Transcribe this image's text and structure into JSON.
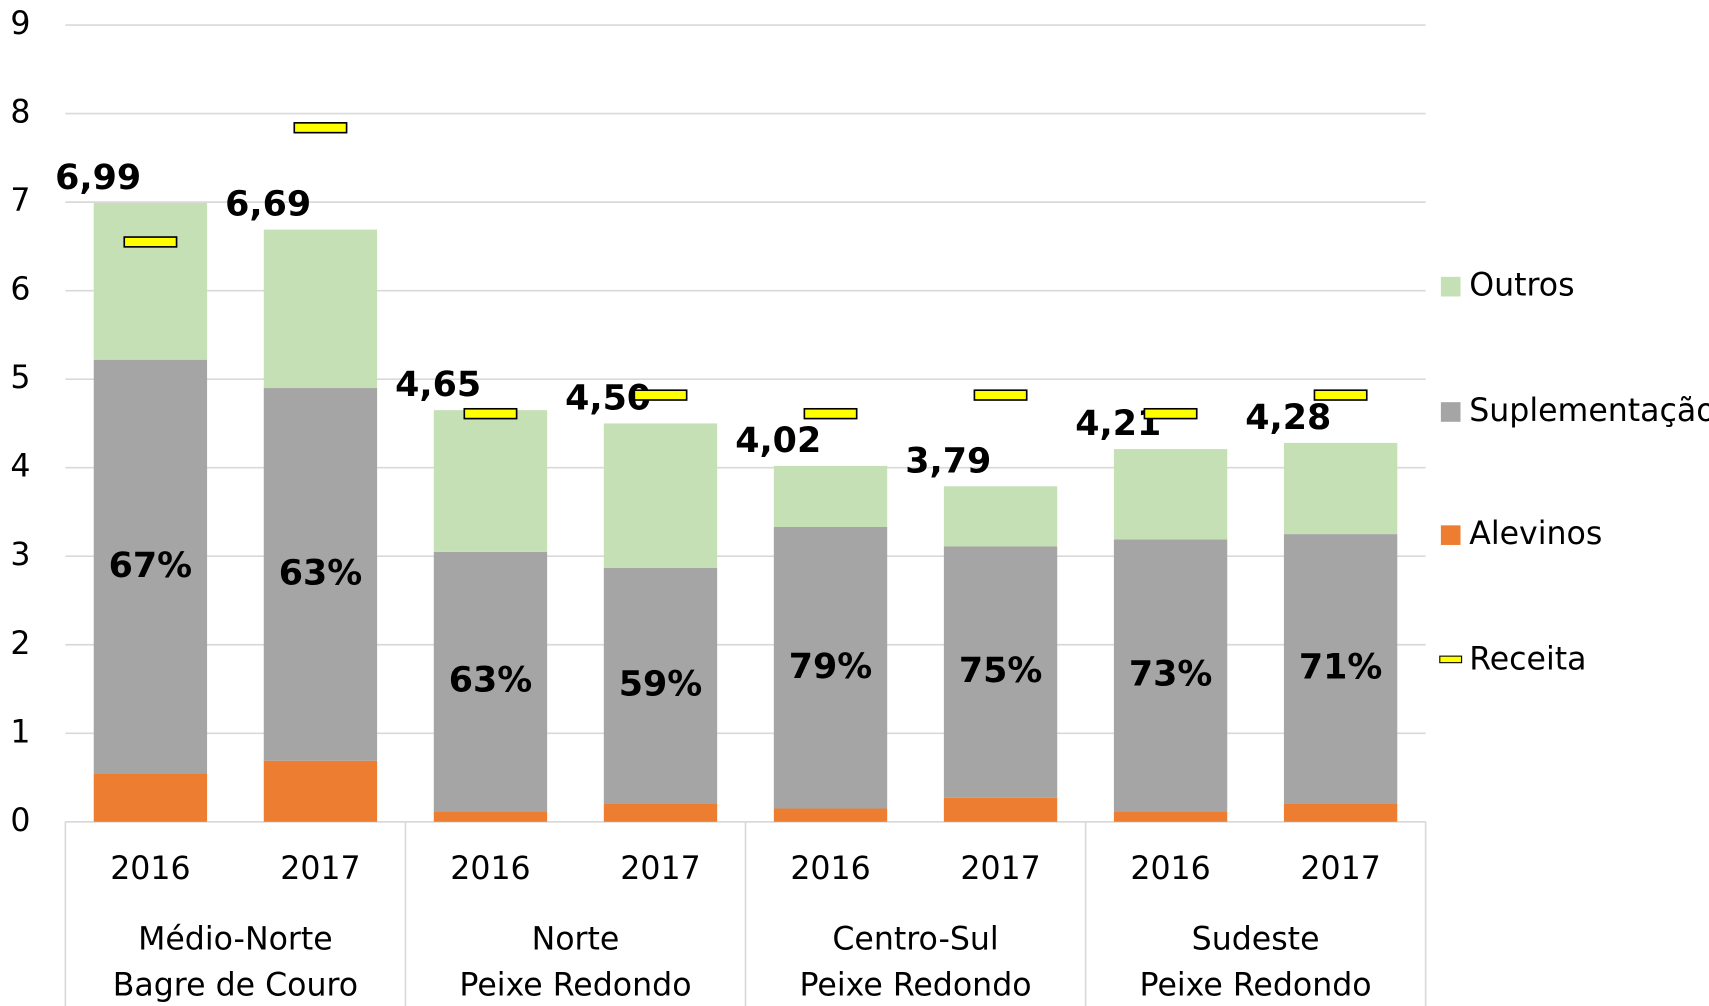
{
  "chart_data": {
    "type": "stacked_bar",
    "categories": [
      "2016",
      "2017",
      "2016",
      "2017",
      "2016",
      "2017",
      "2016",
      "2017"
    ],
    "groups": [
      [
        "Médio-Norte",
        "Bagre de Couro"
      ],
      [
        "Norte",
        "Peixe Redondo"
      ],
      [
        "Centro-Sul",
        "Peixe Redondo"
      ],
      [
        "Sudeste",
        "Peixe Redondo"
      ]
    ],
    "series": [
      {
        "name": "Alevinos",
        "color": "#ed7d31",
        "values": [
          0.54,
          0.69,
          0.12,
          0.21,
          0.15,
          0.27,
          0.12,
          0.21
        ]
      },
      {
        "name": "Suplementação",
        "color": "#a5a5a5",
        "values": [
          4.68,
          4.21,
          2.93,
          2.66,
          3.18,
          2.84,
          3.07,
          3.04
        ]
      },
      {
        "name": "Outros",
        "color": "#c5e0b4",
        "values": [
          1.77,
          1.79,
          1.6,
          1.63,
          0.69,
          0.68,
          1.02,
          1.03
        ]
      }
    ],
    "receita": {
      "name": "Receita",
      "color": "#ffff00",
      "values": [
        6.55,
        7.84,
        4.61,
        4.82,
        4.61,
        4.82,
        4.61,
        4.82
      ]
    },
    "totals": {
      "values": [
        6.99,
        6.69,
        4.65,
        4.5,
        4.02,
        3.79,
        4.21,
        4.28
      ],
      "value_labels": [
        "6,99",
        "6,69",
        "4,65",
        "4,50",
        "4,02",
        "3,79",
        "4,21",
        "4,28"
      ]
    },
    "suplementacao_share": {
      "values": [
        67,
        63,
        63,
        59,
        79,
        75,
        73,
        71
      ],
      "value_labels": [
        "67%",
        "63%",
        "63%",
        "59%",
        "79%",
        "75%",
        "73%",
        "71%"
      ]
    },
    "ylim": [
      0,
      9
    ],
    "yticks": [
      0,
      1,
      2,
      3,
      4,
      5,
      6,
      7,
      8,
      9
    ],
    "grid": true,
    "legend": "right"
  }
}
